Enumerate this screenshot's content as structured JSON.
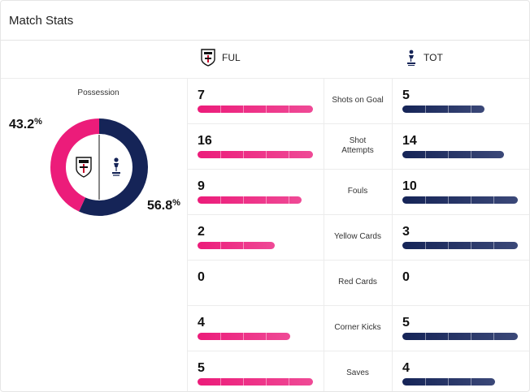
{
  "header": {
    "title": "Match Stats"
  },
  "teams": {
    "home": {
      "abbr": "FUL",
      "color": "#ec1c7a",
      "crest": "fulham-crest-icon"
    },
    "away": {
      "abbr": "TOT",
      "color": "#152457",
      "crest": "tottenham-crest-icon"
    }
  },
  "possession": {
    "label": "Possession",
    "home_value": "43.2",
    "away_value": "56.8",
    "unit": "%"
  },
  "stats": [
    {
      "label": "Shots on Goal",
      "home": "7",
      "away": "5",
      "home_fill": 1.0,
      "away_fill": 0.71
    },
    {
      "label": "Shot Attempts",
      "home": "16",
      "away": "14",
      "home_fill": 1.0,
      "away_fill": 0.88
    },
    {
      "label": "Fouls",
      "home": "9",
      "away": "10",
      "home_fill": 0.9,
      "away_fill": 1.0
    },
    {
      "label": "Yellow Cards",
      "home": "2",
      "away": "3",
      "home_fill": 0.67,
      "away_fill": 1.0
    },
    {
      "label": "Red Cards",
      "home": "0",
      "away": "0",
      "home_fill": 0,
      "away_fill": 0
    },
    {
      "label": "Corner Kicks",
      "home": "4",
      "away": "5",
      "home_fill": 0.8,
      "away_fill": 1.0
    },
    {
      "label": "Saves",
      "home": "5",
      "away": "4",
      "home_fill": 1.0,
      "away_fill": 0.8
    }
  ]
}
